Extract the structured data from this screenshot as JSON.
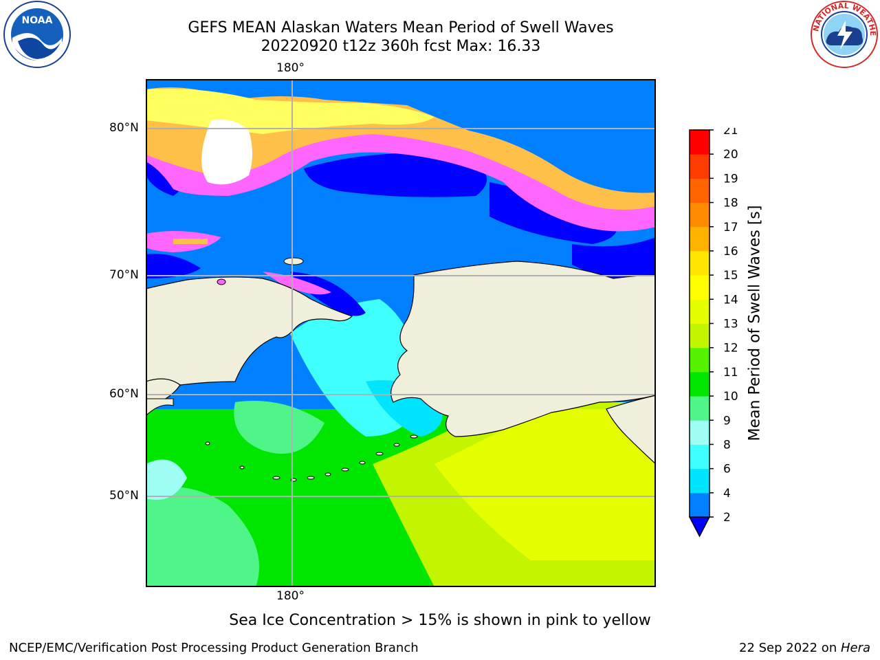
{
  "title": {
    "line1": "GEFS MEAN Alaskan Waters Mean Period of Swell Waves",
    "line2": "20220920 t12z 360h fcst   Max: 16.33"
  },
  "logos": {
    "left": {
      "icon": "noaa-logo-icon",
      "text": "NOAA"
    },
    "right": {
      "icon": "nws-logo-icon",
      "text": "NATIONAL WEATHER SERVICE"
    }
  },
  "map": {
    "lon_label_top": "180°",
    "lon_label_bottom": "180°",
    "lat_labels": [
      "80°N",
      "70°N",
      "60°N",
      "50°N"
    ],
    "land_color": "#efefdb",
    "ice_colors": [
      "#ff66ff",
      "#ffc04a",
      "#ffff60"
    ]
  },
  "colorbar": {
    "label": "Mean Period of Swell Waves [s]",
    "ticks": [
      "2",
      "4",
      "6",
      "8",
      "9",
      "10",
      "11",
      "12",
      "13",
      "14",
      "15",
      "16",
      "17",
      "18",
      "19",
      "20",
      "21"
    ],
    "colors": [
      "#0080ff",
      "#00e5ff",
      "#40ffff",
      "#9ffff5",
      "#50f58a",
      "#00e600",
      "#55f200",
      "#c4f500",
      "#e6ff00",
      "#ffff00",
      "#ffe600",
      "#ffb300",
      "#ff8c00",
      "#ff6400",
      "#ff3c00",
      "#ff0000"
    ],
    "extend_color": "#0000ff"
  },
  "footer": {
    "note": "Sea Ice Concentration > 15% is shown in pink to yellow",
    "credit": "NCEP/EMC/Verification Post Processing Product Generation Branch",
    "date": "22 Sep 2022 on ",
    "host": "Hera"
  }
}
